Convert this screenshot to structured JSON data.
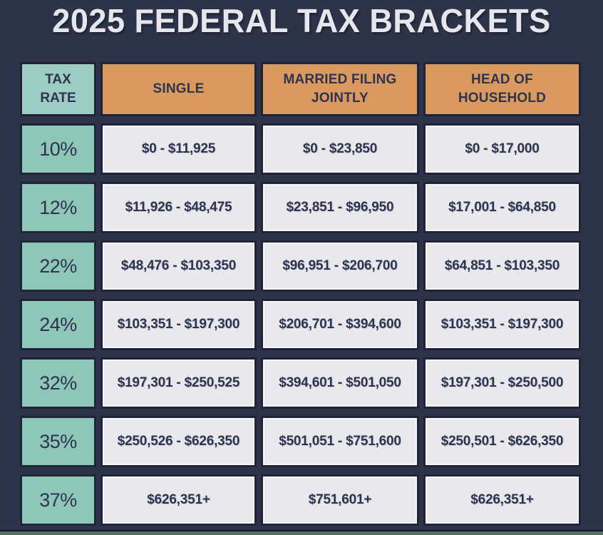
{
  "title": "2025 FEDERAL TAX BRACKETS",
  "colors": {
    "background": "#2d3349",
    "rate_header_teal": "#9cccc2",
    "rate_cell_teal": "#8ec6b8",
    "column_header_orange": "#d9995f",
    "value_cell_gray": "#e8e8ed",
    "cell_border": "#1f2436",
    "text_dark": "#2e3450",
    "title_text": "#e6e7ed",
    "footer_strip_green": "#55705f"
  },
  "table": {
    "headers": [
      {
        "label": "TAX\nRATE"
      },
      {
        "label": "SINGLE"
      },
      {
        "label": "MARRIED FILING JOINTLY"
      },
      {
        "label": "HEAD OF HOUSEHOLD"
      }
    ],
    "rows": [
      {
        "rate": "10%",
        "single": "$0 - $11,925",
        "married": "$0 - $23,850",
        "head": "$0 - $17,000"
      },
      {
        "rate": "12%",
        "single": "$11,926 - $48,475",
        "married": "$23,851 - $96,950",
        "head": "$17,001 - $64,850"
      },
      {
        "rate": "22%",
        "single": "$48,476 - $103,350",
        "married": "$96,951 - $206,700",
        "head": "$64,851 - $103,350"
      },
      {
        "rate": "24%",
        "single": "$103,351 - $197,300",
        "married": "$206,701 - $394,600",
        "head": "$103,351 - $197,300"
      },
      {
        "rate": "32%",
        "single": "$197,301 - $250,525",
        "married": "$394,601 - $501,050",
        "head": "$197,301 - $250,500"
      },
      {
        "rate": "35%",
        "single": "$250,526 - $626,350",
        "married": "$501,051 - $751,600",
        "head": "$250,501 - $626,350"
      },
      {
        "rate": "37%",
        "single": "$626,351+",
        "married": "$751,601+",
        "head": "$626,351+"
      }
    ]
  },
  "chart_data": {
    "type": "table",
    "title": "2025 FEDERAL TAX BRACKETS",
    "columns": [
      "TAX RATE",
      "SINGLE",
      "MARRIED FILING JOINTLY",
      "HEAD OF HOUSEHOLD"
    ],
    "rows": [
      [
        "10%",
        "$0 - $11,925",
        "$0 - $23,850",
        "$0 - $17,000"
      ],
      [
        "12%",
        "$11,926 - $48,475",
        "$23,851 - $96,950",
        "$17,001 - $64,850"
      ],
      [
        "22%",
        "$48,476 - $103,350",
        "$96,951 - $206,700",
        "$64,851 - $103,350"
      ],
      [
        "24%",
        "$103,351 - $197,300",
        "$206,701 - $394,600",
        "$103,351 - $197,300"
      ],
      [
        "32%",
        "$197,301 - $250,525",
        "$394,601 - $501,050",
        "$197,301 - $250,500"
      ],
      [
        "35%",
        "$250,526 - $626,350",
        "$501,051 - $751,600",
        "$250,501 - $626,350"
      ],
      [
        "37%",
        "$626,351+",
        "$751,601+",
        "$626,351+"
      ]
    ]
  }
}
